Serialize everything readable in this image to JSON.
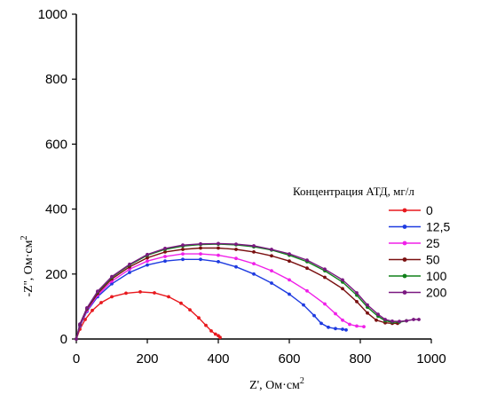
{
  "chart_data": {
    "type": "scatter",
    "xlabel": "Z', Ом·см",
    "xlabel_sup": "2",
    "ylabel": "-Z'', Ом·см",
    "ylabel_sup": "2",
    "xlim": [
      0,
      1000
    ],
    "ylim": [
      0,
      1000
    ],
    "xticks": [
      "0",
      "200",
      "400",
      "600",
      "800",
      "1000"
    ],
    "yticks": [
      "0",
      "200",
      "400",
      "600",
      "800",
      "1000"
    ],
    "grid": false,
    "legend": {
      "title": "Концентрация АТД, мг/л",
      "placement": "right"
    },
    "series": [
      {
        "name": "0",
        "color": "#e8191e",
        "points": [
          [
            0,
            0
          ],
          [
            10,
            30
          ],
          [
            25,
            60
          ],
          [
            45,
            88
          ],
          [
            70,
            112
          ],
          [
            100,
            130
          ],
          [
            140,
            141
          ],
          [
            180,
            145
          ],
          [
            220,
            142
          ],
          [
            260,
            130
          ],
          [
            295,
            110
          ],
          [
            320,
            90
          ],
          [
            345,
            65
          ],
          [
            365,
            42
          ],
          [
            380,
            25
          ],
          [
            392,
            15
          ],
          [
            400,
            10
          ],
          [
            405,
            5
          ]
        ]
      },
      {
        "name": "12,5",
        "color": "#1e3be0",
        "points": [
          [
            0,
            0
          ],
          [
            10,
            40
          ],
          [
            30,
            85
          ],
          [
            60,
            130
          ],
          [
            100,
            170
          ],
          [
            150,
            205
          ],
          [
            200,
            228
          ],
          [
            250,
            240
          ],
          [
            300,
            245
          ],
          [
            350,
            245
          ],
          [
            400,
            238
          ],
          [
            450,
            222
          ],
          [
            500,
            200
          ],
          [
            550,
            172
          ],
          [
            600,
            138
          ],
          [
            640,
            105
          ],
          [
            670,
            72
          ],
          [
            690,
            48
          ],
          [
            710,
            36
          ],
          [
            730,
            32
          ],
          [
            750,
            30
          ],
          [
            760,
            28
          ]
        ]
      },
      {
        "name": "25",
        "color": "#f020e8",
        "points": [
          [
            0,
            0
          ],
          [
            10,
            42
          ],
          [
            30,
            88
          ],
          [
            60,
            135
          ],
          [
            100,
            178
          ],
          [
            150,
            215
          ],
          [
            200,
            240
          ],
          [
            250,
            254
          ],
          [
            300,
            262
          ],
          [
            350,
            262
          ],
          [
            400,
            258
          ],
          [
            450,
            248
          ],
          [
            500,
            232
          ],
          [
            550,
            210
          ],
          [
            600,
            182
          ],
          [
            650,
            148
          ],
          [
            700,
            108
          ],
          [
            730,
            78
          ],
          [
            750,
            58
          ],
          [
            770,
            45
          ],
          [
            790,
            40
          ],
          [
            810,
            38
          ]
        ]
      },
      {
        "name": "50",
        "color": "#7a1010",
        "points": [
          [
            0,
            0
          ],
          [
            10,
            44
          ],
          [
            30,
            92
          ],
          [
            60,
            140
          ],
          [
            100,
            185
          ],
          [
            150,
            222
          ],
          [
            200,
            250
          ],
          [
            250,
            268
          ],
          [
            300,
            276
          ],
          [
            350,
            280
          ],
          [
            400,
            280
          ],
          [
            450,
            276
          ],
          [
            500,
            268
          ],
          [
            550,
            256
          ],
          [
            600,
            240
          ],
          [
            650,
            218
          ],
          [
            700,
            190
          ],
          [
            750,
            155
          ],
          [
            790,
            115
          ],
          [
            820,
            80
          ],
          [
            845,
            58
          ],
          [
            870,
            50
          ],
          [
            890,
            48
          ],
          [
            905,
            48
          ]
        ]
      },
      {
        "name": "100",
        "color": "#10801a",
        "points": [
          [
            0,
            0
          ],
          [
            10,
            45
          ],
          [
            30,
            95
          ],
          [
            60,
            145
          ],
          [
            100,
            190
          ],
          [
            150,
            228
          ],
          [
            200,
            258
          ],
          [
            250,
            276
          ],
          [
            300,
            286
          ],
          [
            350,
            291
          ],
          [
            400,
            292
          ],
          [
            450,
            290
          ],
          [
            500,
            284
          ],
          [
            550,
            274
          ],
          [
            600,
            258
          ],
          [
            650,
            238
          ],
          [
            700,
            210
          ],
          [
            750,
            175
          ],
          [
            790,
            135
          ],
          [
            820,
            98
          ],
          [
            850,
            70
          ],
          [
            870,
            56
          ],
          [
            890,
            52
          ],
          [
            910,
            52
          ],
          [
            930,
            56
          ]
        ]
      },
      {
        "name": "200",
        "color": "#7a1880",
        "points": [
          [
            0,
            0
          ],
          [
            10,
            46
          ],
          [
            30,
            96
          ],
          [
            60,
            147
          ],
          [
            100,
            192
          ],
          [
            150,
            230
          ],
          [
            200,
            260
          ],
          [
            250,
            279
          ],
          [
            300,
            289
          ],
          [
            350,
            293
          ],
          [
            400,
            294
          ],
          [
            450,
            292
          ],
          [
            500,
            287
          ],
          [
            550,
            276
          ],
          [
            600,
            262
          ],
          [
            650,
            243
          ],
          [
            700,
            215
          ],
          [
            750,
            182
          ],
          [
            790,
            142
          ],
          [
            820,
            105
          ],
          [
            850,
            76
          ],
          [
            870,
            60
          ],
          [
            890,
            55
          ],
          [
            910,
            54
          ],
          [
            930,
            56
          ],
          [
            950,
            60
          ],
          [
            965,
            60
          ]
        ]
      }
    ]
  }
}
